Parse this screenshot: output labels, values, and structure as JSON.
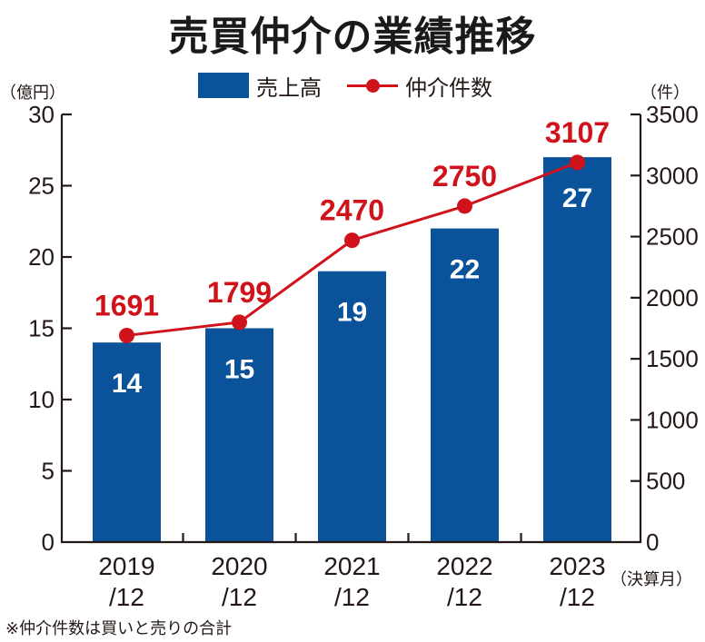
{
  "title": "売買仲介の業績推移",
  "legend": {
    "bar_label": "売上高",
    "line_label": "仲介件数"
  },
  "axes": {
    "left_unit": "（億円）",
    "right_unit": "（件）",
    "x_unit": "（決算月）",
    "left_ticks": [
      0,
      5,
      10,
      15,
      20,
      25,
      30
    ],
    "right_ticks": [
      0,
      500,
      1000,
      1500,
      2000,
      2500,
      3000,
      3500
    ]
  },
  "footnote": "※仲介件数は買いと売りの合計",
  "colors": {
    "bar": "#0a5299",
    "line": "#d0121b",
    "axis": "#231815"
  },
  "chart_data": {
    "type": "bar+line",
    "title": "売買仲介の業績推移",
    "categories": [
      "2019/12",
      "2020/12",
      "2021/12",
      "2022/12",
      "2023/12"
    ],
    "category_lines": [
      [
        "2019",
        "/12"
      ],
      [
        "2020",
        "/12"
      ],
      [
        "2021",
        "/12"
      ],
      [
        "2022",
        "/12"
      ],
      [
        "2023",
        "/12"
      ]
    ],
    "series": [
      {
        "name": "売上高",
        "type": "bar",
        "axis": "left",
        "unit": "億円",
        "values": [
          14,
          15,
          19,
          22,
          27
        ]
      },
      {
        "name": "仲介件数",
        "type": "line",
        "axis": "right",
        "unit": "件",
        "values": [
          1691,
          1799,
          2470,
          2750,
          3107
        ]
      }
    ],
    "xlabel": "決算月",
    "ylabel_left": "億円",
    "ylabel_right": "件",
    "ylim_left": [
      0,
      30
    ],
    "ylim_right": [
      0,
      3500
    ],
    "legend_position": "top",
    "grid": false
  }
}
